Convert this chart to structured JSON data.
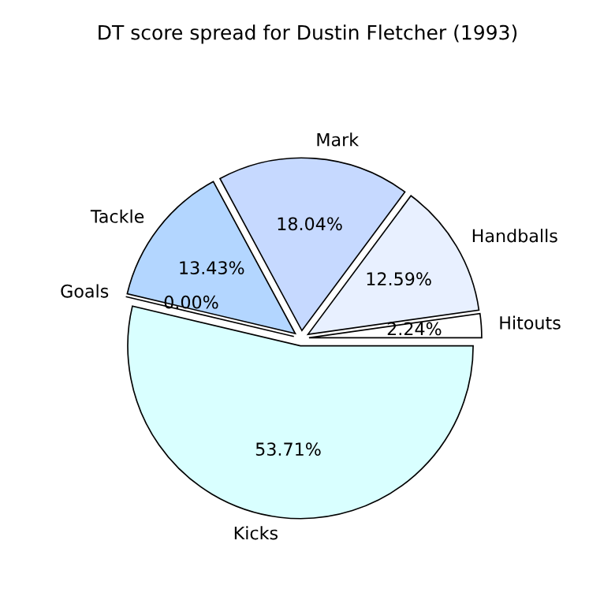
{
  "chart_data": {
    "type": "pie",
    "title": "DT score spread for Dustin Fletcher (1993)",
    "categories": [
      "Hitouts",
      "Handballs",
      "Mark",
      "Tackle",
      "Goals",
      "Kicks"
    ],
    "values": [
      2.24,
      12.59,
      18.04,
      13.43,
      0.0,
      53.71
    ],
    "value_labels": [
      "2.24%",
      "12.59%",
      "18.04%",
      "13.43%",
      "0.00%",
      "53.71%"
    ],
    "colors": [
      "#ffffff",
      "#e8f0ff",
      "#c6d9ff",
      "#b3d6ff",
      "#cceeff",
      "#d9ffff"
    ],
    "legend": false
  }
}
